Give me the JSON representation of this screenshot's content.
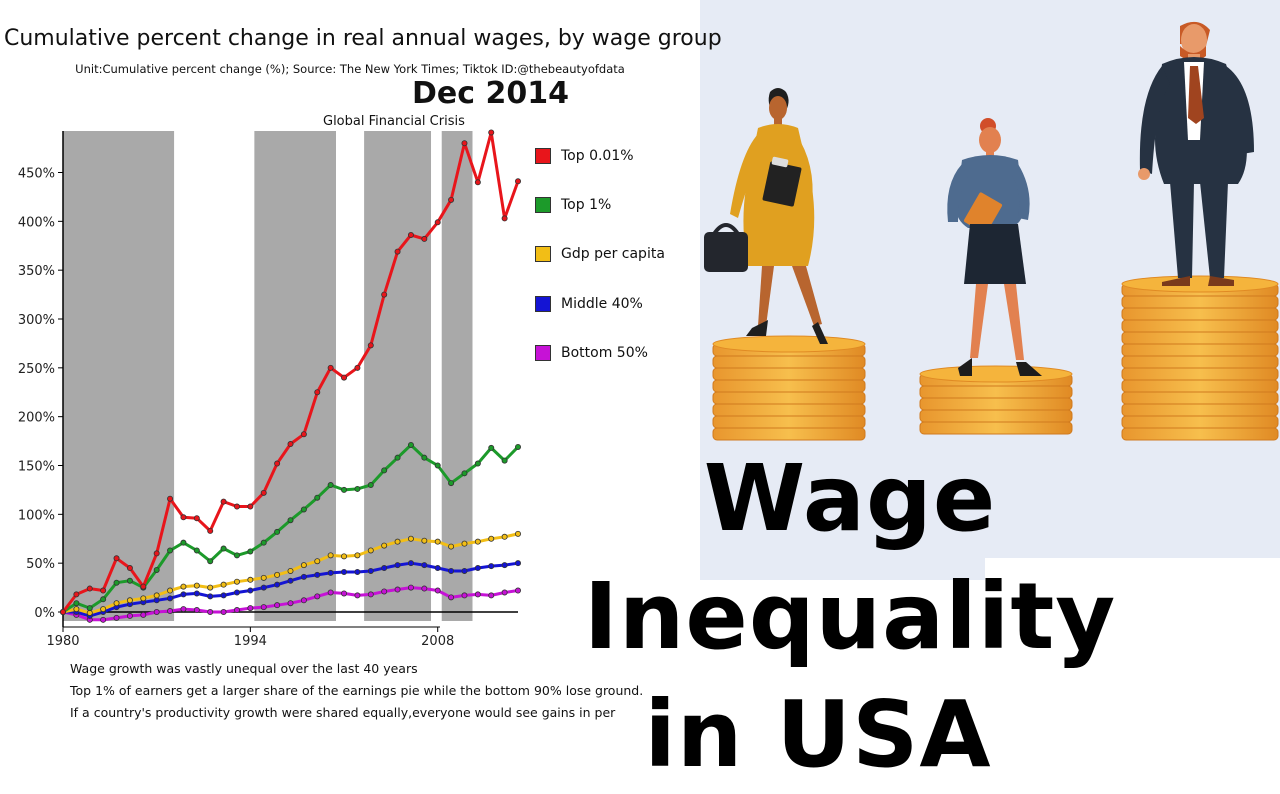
{
  "header": {
    "title": "Cumulative percent change in real annual wages, by wage group",
    "subtitle": "Unit:Cumulative percent change (%);  Source: The New York Times;  Tiktok ID:@thebeautyofdata",
    "date": "Dec 2014",
    "annotation": "Global Financial Crisis"
  },
  "overlay": {
    "line1": "Wage Inequality",
    "line2": "in USA"
  },
  "notes": [
    "Wage growth was vastly unequal over the last 40 years",
    "Top 1% of earners get a larger share of the earnings pie while the bottom 90% lose ground.",
    "If a country's productivity growth were shared equally,everyone would see gains in per"
  ],
  "illustration": {
    "icons": [
      "businesswoman-on-coins-icon",
      "woman-on-coins-icon",
      "businessman-on-coins-icon"
    ]
  },
  "chart_data": {
    "type": "line",
    "title": "Cumulative percent change in real annual wages, by wage group",
    "xlabel": "",
    "ylabel": "",
    "xlim": [
      1980,
      2014
    ],
    "ylim": [
      -5,
      490
    ],
    "x_ticks": [
      1980,
      1994,
      2008
    ],
    "y_ticks": [
      0,
      50,
      100,
      150,
      200,
      250,
      300,
      350,
      400,
      450
    ],
    "y_tick_labels": [
      "0%",
      "50%",
      "100%",
      "150%",
      "200%",
      "250%",
      "300%",
      "350%",
      "400%",
      "450%"
    ],
    "grid": false,
    "legend": "right",
    "shaded_periods": [
      [
        1980,
        1988.3
      ],
      [
        1994.3,
        2000.4
      ],
      [
        2002.5,
        2007.5
      ],
      [
        2008.3,
        2010.6
      ]
    ],
    "x": [
      1980,
      1981,
      1982,
      1983,
      1984,
      1985,
      1986,
      1987,
      1988,
      1989,
      1990,
      1991,
      1992,
      1993,
      1994,
      1995,
      1996,
      1997,
      1998,
      1999,
      2000,
      2001,
      2002,
      2003,
      2004,
      2005,
      2006,
      2007,
      2008,
      2009,
      2010,
      2011,
      2012,
      2013,
      2014
    ],
    "series": [
      {
        "name": "Top 0.01%",
        "color": "#e8151b",
        "values": [
          0,
          18,
          24,
          22,
          55,
          45,
          26,
          60,
          116,
          97,
          96,
          83,
          113,
          108,
          108,
          122,
          152,
          172,
          182,
          225,
          250,
          240,
          250,
          273,
          325,
          369,
          386,
          382,
          399,
          422,
          480,
          440,
          491,
          403,
          441
        ]
      },
      {
        "name": "Top 1%",
        "color": "#1c9a2a",
        "values": [
          0,
          9,
          4,
          13,
          30,
          32,
          25,
          43,
          63,
          71,
          63,
          52,
          65,
          58,
          62,
          71,
          82,
          94,
          105,
          117,
          130,
          125,
          126,
          130,
          145,
          158,
          171,
          158,
          150,
          132,
          142,
          152,
          168,
          155,
          169
        ]
      },
      {
        "name": "Gdp per capita",
        "color": "#f2be16",
        "values": [
          0,
          3,
          -1,
          3,
          9,
          12,
          14,
          17,
          22,
          26,
          27,
          25,
          28,
          31,
          33,
          35,
          38,
          42,
          48,
          52,
          58,
          57,
          58,
          63,
          68,
          72,
          75,
          73,
          72,
          67,
          70,
          72,
          75,
          77,
          80
        ]
      },
      {
        "name": "Middle 40%",
        "color": "#1414d4",
        "values": [
          0,
          0,
          -4,
          0,
          5,
          8,
          10,
          12,
          14,
          18,
          19,
          16,
          17,
          20,
          22,
          25,
          28,
          32,
          36,
          38,
          40,
          41,
          41,
          42,
          45,
          48,
          50,
          48,
          45,
          42,
          42,
          45,
          47,
          48,
          50
        ]
      },
      {
        "name": "Bottom 50%",
        "color": "#c612d6",
        "values": [
          0,
          -3,
          -8,
          -8,
          -6,
          -4,
          -3,
          0,
          1,
          3,
          2,
          0,
          0,
          2,
          4,
          5,
          7,
          9,
          12,
          16,
          20,
          19,
          17,
          18,
          21,
          23,
          25,
          24,
          22,
          15,
          17,
          18,
          17,
          20,
          22
        ]
      }
    ]
  }
}
